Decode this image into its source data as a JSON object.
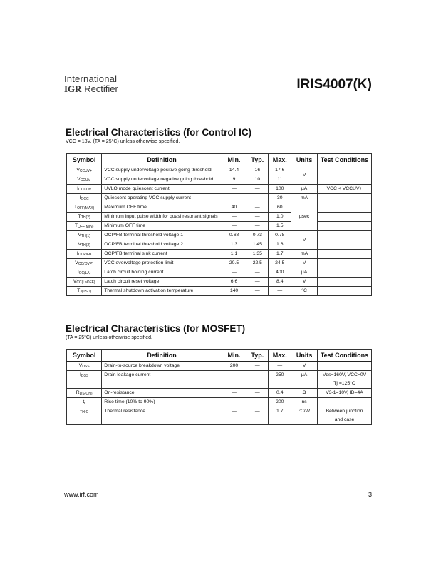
{
  "header": {
    "logo_line1": "International",
    "logo_line2_bold": "IGR",
    "logo_line2": "Rectifier",
    "part": "IRIS4007(K)"
  },
  "control": {
    "title": "Electrical Characteristics (for Control IC)",
    "conditions": "VCC = 18V, (TA = 25°C) unless otherwise specified.",
    "columns": [
      "Symbol",
      "Definition",
      "Min.",
      "Typ.",
      "Max.",
      "Units",
      "Test Conditions"
    ],
    "rows": [
      {
        "sym": "V",
        "sub": "CCUV+",
        "def": "VCC supply undervoltage positive going threshold",
        "min": "14.4",
        "typ": "16",
        "max": "17.6",
        "units": "V",
        "span": 2,
        "test": ""
      },
      {
        "sym": "V",
        "sub": "CCUV-",
        "def": "VCC supply undervoltage negative going threshold",
        "min": "9",
        "typ": "10",
        "max": "11",
        "units": null,
        "test": ""
      },
      {
        "sym": "I",
        "sub": "OCCUV",
        "def": "UVLO mode quiescent current",
        "min": "—",
        "typ": "—",
        "max": "100",
        "units": "µA",
        "span": 1,
        "test": "VCC < VCCUV+"
      },
      {
        "sym": "I",
        "sub": "OCC",
        "def": "Quiescent operating VCC supply current",
        "min": "—",
        "typ": "—",
        "max": "30",
        "units": "mA",
        "span": 1,
        "test": ""
      },
      {
        "sym": "T",
        "sub": "OFF(MAX)",
        "def": "Maximum OFF time",
        "min": "40",
        "typ": "—",
        "max": "60",
        "units": "µsec",
        "span": 3,
        "test": ""
      },
      {
        "sym": "T",
        "sub": "TH(2)",
        "def": "Minimum input pulse width for quasi resonant signals",
        "min": "—",
        "typ": "—",
        "max": "1.0",
        "units": null,
        "test": ""
      },
      {
        "sym": "T",
        "sub": "OFF(MIN)",
        "def": "Minimum OFF time",
        "min": "—",
        "typ": "—",
        "max": "1.5",
        "units": null,
        "test": ""
      },
      {
        "sym": "V",
        "sub": "TH(1)",
        "def": "OCP/FB terminal threshold voltage 1",
        "min": "0.68",
        "typ": "0.73",
        "max": "0.78",
        "units": "V",
        "span": 2,
        "test": ""
      },
      {
        "sym": "V",
        "sub": "TH(2)",
        "def": "OCP/FB terminal threshold voltage 2",
        "min": "1.3",
        "typ": "1.45",
        "max": "1.6",
        "units": null,
        "test": ""
      },
      {
        "sym": "I",
        "sub": "OCP/FB",
        "def": "OCP/FB terminal sink current",
        "min": "1.1",
        "typ": "1.35",
        "max": "1.7",
        "units": "mA",
        "span": 1,
        "test": ""
      },
      {
        "sym": "V",
        "sub": "CC(OVP)",
        "def": "VCC overvoltage protection limit",
        "min": "20.5",
        "typ": "22.5",
        "max": "24.5",
        "units": "V",
        "span": 1,
        "test": ""
      },
      {
        "sym": "I",
        "sub": "CC(LA)",
        "def": "Latch circuit holding current",
        "min": "—",
        "typ": "—",
        "max": "400",
        "units": "µA",
        "span": 1,
        "test": ""
      },
      {
        "sym": "V",
        "sub": "CC(LaOFF)",
        "def": "Latch circuit reset voltage",
        "min": "6.6",
        "typ": "—",
        "max": "8.4",
        "units": "V",
        "span": 1,
        "test": ""
      },
      {
        "sym": "T",
        "sub": "J(TSD)",
        "def": "Thermal shutdown activation temperature",
        "min": "140",
        "typ": "—",
        "max": "—",
        "units": "°C",
        "span": 1,
        "test": ""
      }
    ]
  },
  "mosfet": {
    "title": "Electrical Characteristics (for MOSFET)",
    "conditions": "(TA = 25°C) unless otherwise specified.",
    "columns": [
      "Symbol",
      "Definition",
      "Min.",
      "Typ.",
      "Max.",
      "Units",
      "Test Conditions"
    ],
    "rows": [
      {
        "sym": "V",
        "sub": "DSS",
        "def": "Drain-to-source breakdown voltage",
        "min": "200",
        "typ": "—",
        "max": "—",
        "units": "V",
        "span": 1,
        "test": ""
      },
      {
        "sym": "I",
        "sub": "DSS",
        "def": "Drain leakage current",
        "min": "—",
        "typ": "—",
        "max": "250",
        "units": "µA",
        "span": 1,
        "test": "Vds=160V, VCC=0V",
        "test2": "Tj =125°C"
      },
      {
        "sym": "R",
        "sub": "DS(ON)",
        "def": "On-resistance",
        "min": "—",
        "typ": "—",
        "max": "0.4",
        "units": "Ω",
        "span": 1,
        "test": "V3-1=10V, ID=4A"
      },
      {
        "sym": "t",
        "sub": "r",
        "def": "Rise time (10% to 90%)",
        "min": "—",
        "typ": "—",
        "max": "200",
        "units": "ns",
        "span": 1,
        "test": ""
      },
      {
        "sym": "",
        "sub": "TH-C",
        "def": "Thermal resistance",
        "min": "—",
        "typ": "—",
        "max": "1.7",
        "units": "°C/W",
        "span": 1,
        "test": "Between junction",
        "test2": "and case"
      }
    ]
  },
  "footer": {
    "url": "www.irf.com",
    "page": "3"
  }
}
